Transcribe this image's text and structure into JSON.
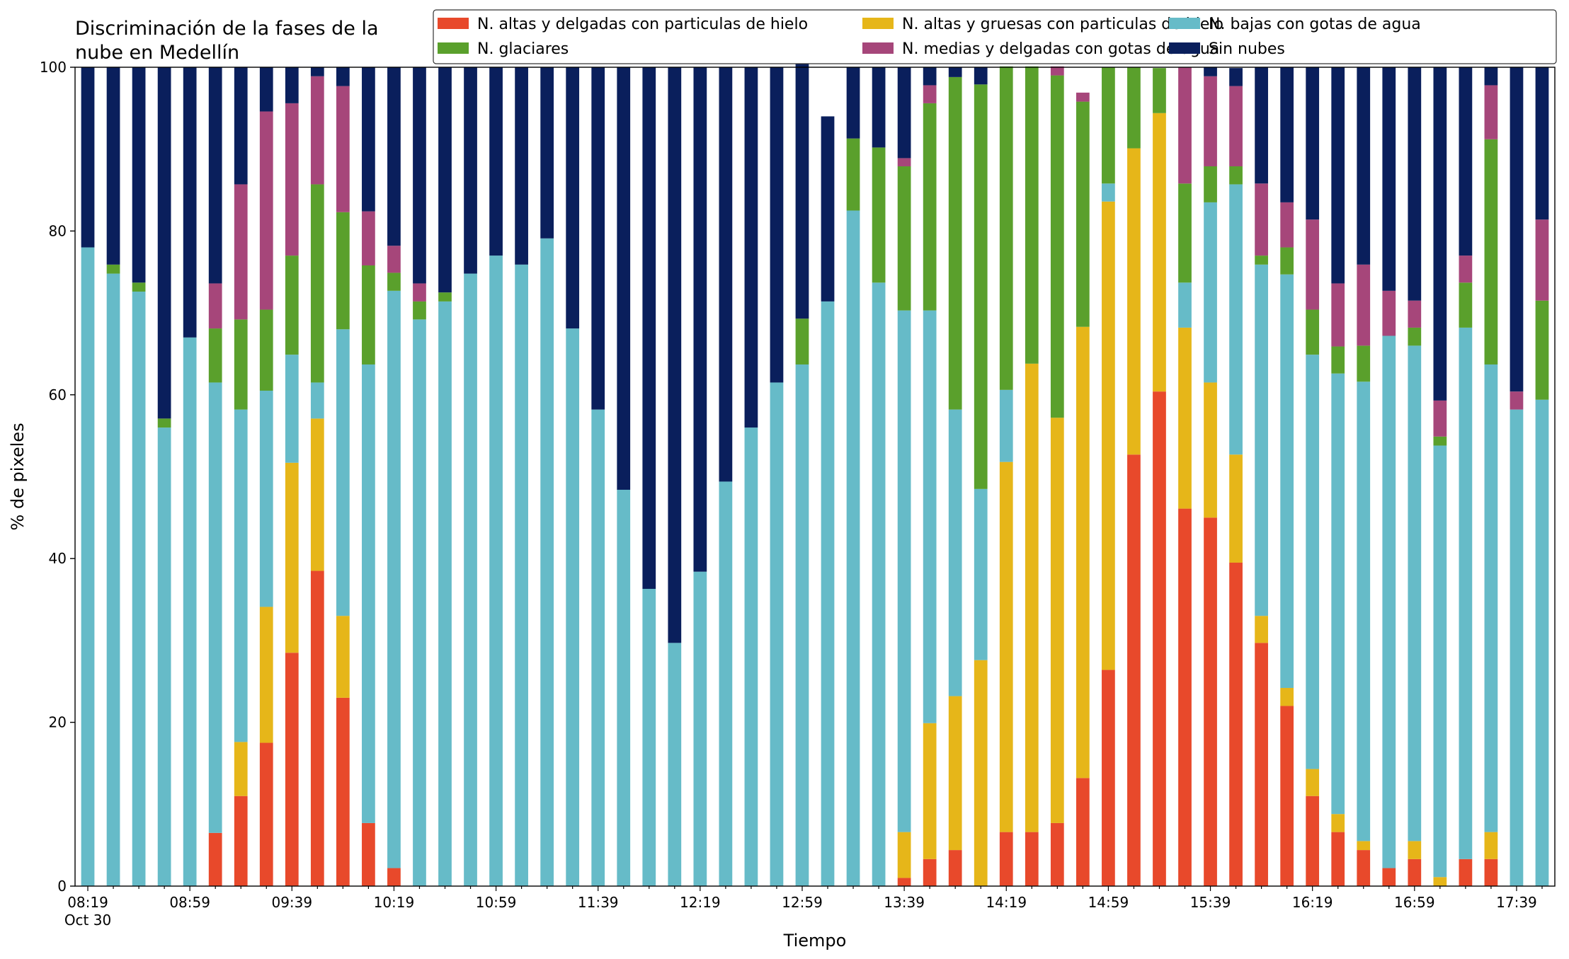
{
  "chart_data": {
    "type": "bar",
    "stacked": true,
    "title_lines": [
      "Discriminación de la fases de la",
      "nube en Medellín"
    ],
    "xlabel": "Tiempo",
    "ylabel": "% de pixeles",
    "ylim": [
      0,
      100
    ],
    "yticks": [
      0,
      20,
      40,
      60,
      80,
      100
    ],
    "grid": false,
    "legend_position": "top-right",
    "legend_columns": 3,
    "x": [
      "08:19",
      "08:29",
      "08:39",
      "08:49",
      "08:59",
      "09:09",
      "09:19",
      "09:29",
      "09:39",
      "09:49",
      "09:59",
      "10:09",
      "10:19",
      "10:29",
      "10:39",
      "10:49",
      "10:59",
      "11:09",
      "11:19",
      "11:29",
      "11:39",
      "11:49",
      "11:59",
      "12:09",
      "12:19",
      "12:29",
      "12:39",
      "12:49",
      "12:59",
      "13:09",
      "13:19",
      "13:29",
      "13:39",
      "13:49",
      "13:59",
      "14:09",
      "14:19",
      "14:29",
      "14:39",
      "14:49",
      "14:59",
      "15:09",
      "15:19",
      "15:29",
      "15:39",
      "15:49",
      "15:59",
      "16:09",
      "16:19",
      "16:29",
      "16:39",
      "16:49",
      "16:59",
      "17:09",
      "17:19",
      "17:29",
      "17:39",
      "17:49"
    ],
    "xtick_labels": [
      {
        "index": 0,
        "label": "08:19",
        "sublabel": "Oct 30"
      },
      {
        "index": 4,
        "label": "08:59"
      },
      {
        "index": 8,
        "label": "09:39"
      },
      {
        "index": 12,
        "label": "10:19"
      },
      {
        "index": 16,
        "label": "10:59"
      },
      {
        "index": 20,
        "label": "11:39"
      },
      {
        "index": 24,
        "label": "12:19"
      },
      {
        "index": 28,
        "label": "12:59"
      },
      {
        "index": 32,
        "label": "13:39"
      },
      {
        "index": 36,
        "label": "14:19"
      },
      {
        "index": 40,
        "label": "14:59"
      },
      {
        "index": 44,
        "label": "15:39"
      },
      {
        "index": 48,
        "label": "16:19"
      },
      {
        "index": 52,
        "label": "16:59"
      },
      {
        "index": 56,
        "label": "17:39"
      }
    ],
    "series": [
      {
        "name": "N. altas y delgadas con particulas de hielo",
        "color": "#e8492b",
        "values": [
          0,
          0,
          0,
          0,
          0,
          6.5,
          11,
          17.5,
          28.5,
          38.5,
          23,
          7.7,
          2.2,
          0,
          0,
          0,
          0,
          0,
          0,
          0,
          0,
          0,
          0,
          0,
          0,
          0,
          0,
          0,
          0,
          0,
          0,
          0,
          1,
          3.3,
          4.4,
          0,
          6.6,
          6.6,
          7.7,
          13.2,
          26.4,
          52.7,
          60.4,
          46.1,
          45,
          39.5,
          29.7,
          22,
          11,
          6.6,
          4.4,
          2.2,
          3.3,
          0,
          3.3,
          3.3,
          0,
          0
        ]
      },
      {
        "name": "N. altas y gruesas con particulas de hielo",
        "color": "#e6b619",
        "values": [
          0,
          0,
          0,
          0,
          0,
          0,
          6.6,
          16.6,
          23.2,
          18.6,
          10,
          0,
          0,
          0,
          0,
          0,
          0,
          0,
          0,
          0,
          0,
          0,
          0,
          0,
          0,
          0,
          0,
          0,
          0,
          0,
          0,
          0,
          5.6,
          16.6,
          18.8,
          27.6,
          45.2,
          57.2,
          49.5,
          55.1,
          57.2,
          37.4,
          34,
          22.1,
          16.5,
          13.2,
          3.3,
          2.2,
          3.3,
          2.2,
          1.1,
          0,
          2.2,
          1.1,
          0,
          3.3,
          0,
          0
        ]
      },
      {
        "name": "N. bajas con gotas de agua",
        "color": "#66bbc8",
        "values": [
          78,
          74.8,
          72.6,
          56,
          67,
          55,
          40.6,
          26.4,
          13.2,
          4.4,
          35,
          56,
          70.5,
          69.2,
          71.4,
          74.8,
          77,
          75.9,
          79.1,
          68.1,
          58.2,
          48.4,
          36.3,
          29.7,
          38.4,
          49.4,
          56,
          61.5,
          63.7,
          71.4,
          82.5,
          73.7,
          63.7,
          50.4,
          35,
          20.9,
          8.8,
          0,
          0,
          0,
          2.2,
          0,
          0,
          5.5,
          22,
          33,
          42.9,
          50.5,
          50.6,
          53.8,
          56.1,
          65,
          60.5,
          52.7,
          64.9,
          57.1,
          58.2,
          59.4
        ]
      },
      {
        "name": "N. glaciares",
        "color": "#5aa02c",
        "values": [
          0,
          1.1,
          1.1,
          1.1,
          0,
          6.6,
          11,
          9.9,
          12.1,
          24.2,
          14.3,
          12.1,
          2.2,
          2.2,
          1.1,
          0,
          0,
          0,
          0,
          0,
          0,
          0,
          0,
          0,
          0,
          0,
          0,
          0,
          5.6,
          0,
          8.8,
          16.5,
          17.6,
          25.3,
          40.6,
          49.4,
          39.5,
          36.3,
          41.8,
          27.5,
          14.2,
          9.9,
          5.5,
          12.1,
          4.4,
          2.2,
          1.1,
          3.3,
          5.5,
          3.3,
          4.4,
          0,
          2.2,
          1.1,
          5.5,
          27.5,
          0,
          12.1
        ]
      },
      {
        "name": "N. medias y delgadas con gotas de agua",
        "color": "#a6467a",
        "values": [
          0,
          0,
          0,
          0,
          0,
          5.5,
          16.5,
          24.2,
          18.6,
          13.2,
          15.4,
          6.6,
          3.3,
          2.2,
          0,
          0,
          0,
          0,
          0,
          0,
          0,
          0,
          0,
          0,
          0,
          0,
          0,
          0,
          0,
          0,
          0,
          0,
          1,
          2.2,
          0,
          0,
          0,
          0,
          1.1,
          1.1,
          0,
          0,
          0,
          14.2,
          11,
          9.8,
          8.8,
          5.5,
          11,
          7.7,
          9.9,
          5.5,
          3.3,
          4.4,
          3.3,
          6.6,
          2.2,
          9.9
        ]
      },
      {
        "name": "Sin nubes",
        "color": "#0a1f5c",
        "values": [
          22,
          24.1,
          26.3,
          42.9,
          33,
          26.4,
          14.3,
          5.4,
          4.4,
          1.1,
          2.3,
          17.6,
          21.8,
          26.4,
          27.5,
          25.2,
          23,
          24.1,
          20.9,
          31.9,
          41.8,
          51.6,
          63.7,
          70.3,
          61.6,
          50.6,
          44,
          38.5,
          36.3,
          22.6,
          8.7,
          9.8,
          11.1,
          2.2,
          1.2,
          2.1,
          0,
          0,
          0,
          0,
          0,
          0,
          0,
          0,
          1.1,
          2.2,
          14.2,
          16.5,
          18.6,
          26.4,
          24.1,
          27.3,
          28.5,
          40.7,
          23,
          2.2,
          39.6,
          18.6
        ]
      }
    ]
  }
}
